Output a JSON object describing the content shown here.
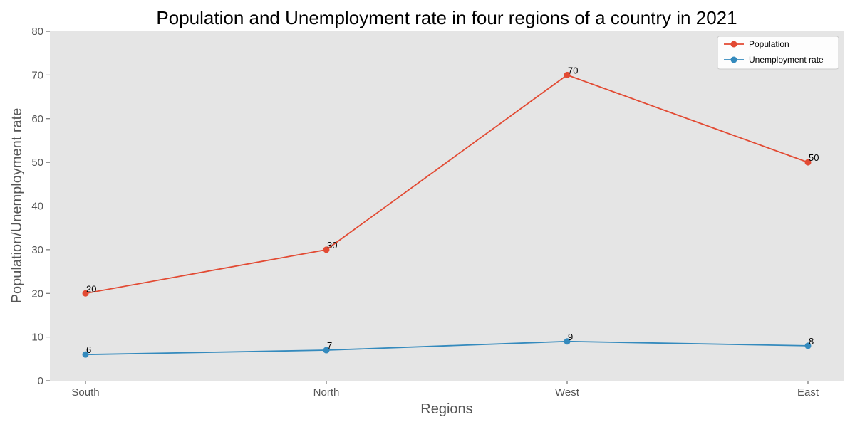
{
  "chart_data": {
    "type": "line",
    "title": "Population and Unemployment rate in four regions of a country in 2021",
    "xlabel": "Regions",
    "ylabel": "Population/Unemployment rate",
    "categories": [
      "South",
      "North",
      "West",
      "East"
    ],
    "ylim": [
      0,
      80
    ],
    "yticks": [
      0,
      10,
      20,
      30,
      40,
      50,
      60,
      70,
      80
    ],
    "grid": false,
    "legend_position": "top-right",
    "background_color": "#e5e5e5",
    "series": [
      {
        "name": "Population",
        "values": [
          20,
          30,
          70,
          50
        ],
        "color": "#e24a33"
      },
      {
        "name": "Unemployment rate",
        "values": [
          6,
          7,
          9,
          8
        ],
        "color": "#348abd"
      }
    ]
  }
}
